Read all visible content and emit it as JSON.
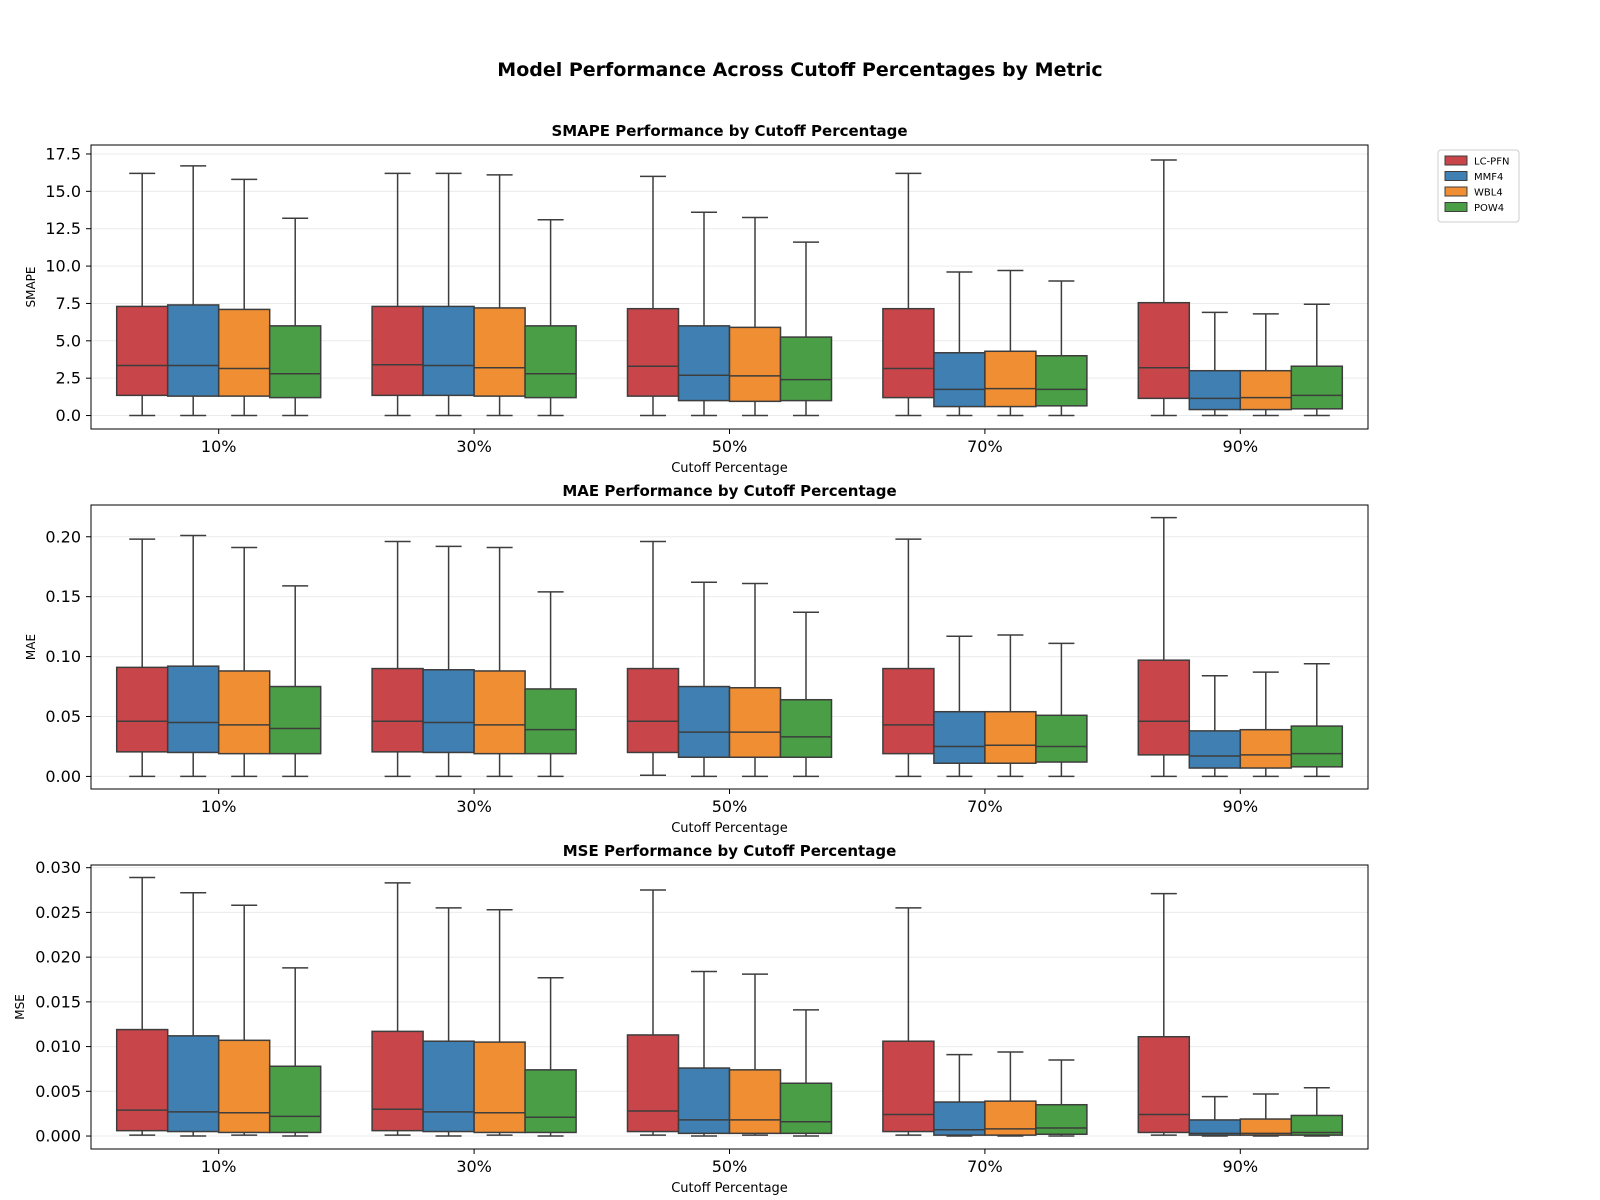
{
  "figure": {
    "title": "Model Performance Across Cutoff Percentages by Metric"
  },
  "legend": {
    "placement": "upper-right outside",
    "items": [
      {
        "name": "LC-PFN",
        "color": "#c8464a"
      },
      {
        "name": "MMF4",
        "color": "#3f7fb2"
      },
      {
        "name": "WBL4",
        "color": "#ef8e33"
      },
      {
        "name": "POW4",
        "color": "#4a9e45"
      }
    ]
  },
  "chart_data": [
    {
      "type": "box",
      "title": "SMAPE Performance by Cutoff Percentage",
      "xlabel": "Cutoff Percentage",
      "ylabel": "SMAPE",
      "ylim": [
        -0.9,
        18.1
      ],
      "yticks": [
        0.0,
        2.5,
        5.0,
        7.5,
        10.0,
        12.5,
        15.0,
        17.5
      ],
      "tick_decimals": 1,
      "grid": "y",
      "categories": [
        "10%",
        "30%",
        "50%",
        "70%",
        "90%"
      ],
      "series": [
        {
          "name": "LC-PFN",
          "boxes": [
            {
              "min": 0.0,
              "q1": 1.35,
              "median": 3.35,
              "q3": 7.3,
              "max": 16.2
            },
            {
              "min": 0.0,
              "q1": 1.35,
              "median": 3.4,
              "q3": 7.3,
              "max": 16.2
            },
            {
              "min": 0.0,
              "q1": 1.3,
              "median": 3.3,
              "q3": 7.15,
              "max": 16.0
            },
            {
              "min": 0.0,
              "q1": 1.2,
              "median": 3.15,
              "q3": 7.15,
              "max": 16.2
            },
            {
              "min": 0.0,
              "q1": 1.15,
              "median": 3.2,
              "q3": 7.55,
              "max": 17.1
            }
          ]
        },
        {
          "name": "MMF4",
          "boxes": [
            {
              "min": 0.0,
              "q1": 1.3,
              "median": 3.35,
              "q3": 7.4,
              "max": 16.7
            },
            {
              "min": 0.0,
              "q1": 1.35,
              "median": 3.35,
              "q3": 7.3,
              "max": 16.2
            },
            {
              "min": 0.0,
              "q1": 1.0,
              "median": 2.7,
              "q3": 6.0,
              "max": 13.6
            },
            {
              "min": 0.0,
              "q1": 0.6,
              "median": 1.75,
              "q3": 4.2,
              "max": 9.6
            },
            {
              "min": 0.0,
              "q1": 0.4,
              "median": 1.15,
              "q3": 3.0,
              "max": 6.9
            }
          ]
        },
        {
          "name": "WBL4",
          "boxes": [
            {
              "min": 0.0,
              "q1": 1.3,
              "median": 3.15,
              "q3": 7.1,
              "max": 15.8
            },
            {
              "min": 0.0,
              "q1": 1.3,
              "median": 3.2,
              "q3": 7.2,
              "max": 16.1
            },
            {
              "min": 0.0,
              "q1": 0.95,
              "median": 2.65,
              "q3": 5.9,
              "max": 13.25
            },
            {
              "min": 0.0,
              "q1": 0.6,
              "median": 1.8,
              "q3": 4.3,
              "max": 9.7
            },
            {
              "min": 0.0,
              "q1": 0.4,
              "median": 1.2,
              "q3": 3.0,
              "max": 6.8
            }
          ]
        },
        {
          "name": "POW4",
          "boxes": [
            {
              "min": 0.0,
              "q1": 1.2,
              "median": 2.8,
              "q3": 6.0,
              "max": 13.2
            },
            {
              "min": 0.0,
              "q1": 1.2,
              "median": 2.8,
              "q3": 6.0,
              "max": 13.1
            },
            {
              "min": 0.0,
              "q1": 1.0,
              "median": 2.4,
              "q3": 5.25,
              "max": 11.6
            },
            {
              "min": 0.0,
              "q1": 0.65,
              "median": 1.75,
              "q3": 4.0,
              "max": 9.0
            },
            {
              "min": 0.0,
              "q1": 0.45,
              "median": 1.35,
              "q3": 3.3,
              "max": 7.45
            }
          ]
        }
      ]
    },
    {
      "type": "box",
      "title": "MAE Performance by Cutoff Percentage",
      "xlabel": "Cutoff Percentage",
      "ylabel": "MAE",
      "ylim": [
        -0.0105,
        0.2265
      ],
      "yticks": [
        0.0,
        0.05,
        0.1,
        0.15,
        0.2
      ],
      "tick_decimals": 2,
      "grid": "y",
      "categories": [
        "10%",
        "30%",
        "50%",
        "70%",
        "90%"
      ],
      "series": [
        {
          "name": "LC-PFN",
          "boxes": [
            {
              "min": 0.0,
              "q1": 0.0205,
              "median": 0.046,
              "q3": 0.091,
              "max": 0.198
            },
            {
              "min": 0.0,
              "q1": 0.0205,
              "median": 0.046,
              "q3": 0.09,
              "max": 0.196
            },
            {
              "min": 0.001,
              "q1": 0.02,
              "median": 0.046,
              "q3": 0.09,
              "max": 0.196
            },
            {
              "min": 0.0,
              "q1": 0.019,
              "median": 0.043,
              "q3": 0.09,
              "max": 0.198
            },
            {
              "min": 0.0,
              "q1": 0.018,
              "median": 0.046,
              "q3": 0.097,
              "max": 0.216
            }
          ]
        },
        {
          "name": "MMF4",
          "boxes": [
            {
              "min": 0.0,
              "q1": 0.02,
              "median": 0.045,
              "q3": 0.092,
              "max": 0.201
            },
            {
              "min": 0.0,
              "q1": 0.02,
              "median": 0.045,
              "q3": 0.089,
              "max": 0.192
            },
            {
              "min": 0.0,
              "q1": 0.016,
              "median": 0.037,
              "q3": 0.075,
              "max": 0.162
            },
            {
              "min": 0.0,
              "q1": 0.011,
              "median": 0.025,
              "q3": 0.054,
              "max": 0.117
            },
            {
              "min": 0.0,
              "q1": 0.007,
              "median": 0.017,
              "q3": 0.038,
              "max": 0.084
            }
          ]
        },
        {
          "name": "WBL4",
          "boxes": [
            {
              "min": 0.0,
              "q1": 0.019,
              "median": 0.043,
              "q3": 0.088,
              "max": 0.191
            },
            {
              "min": 0.0,
              "q1": 0.019,
              "median": 0.043,
              "q3": 0.088,
              "max": 0.191
            },
            {
              "min": 0.0,
              "q1": 0.016,
              "median": 0.037,
              "q3": 0.074,
              "max": 0.161
            },
            {
              "min": 0.0,
              "q1": 0.011,
              "median": 0.026,
              "q3": 0.054,
              "max": 0.118
            },
            {
              "min": 0.0,
              "q1": 0.007,
              "median": 0.018,
              "q3": 0.039,
              "max": 0.087
            }
          ]
        },
        {
          "name": "POW4",
          "boxes": [
            {
              "min": 0.0,
              "q1": 0.019,
              "median": 0.04,
              "q3": 0.075,
              "max": 0.159
            },
            {
              "min": 0.0,
              "q1": 0.019,
              "median": 0.039,
              "q3": 0.073,
              "max": 0.154
            },
            {
              "min": 0.0,
              "q1": 0.016,
              "median": 0.033,
              "q3": 0.064,
              "max": 0.137
            },
            {
              "min": 0.0,
              "q1": 0.012,
              "median": 0.025,
              "q3": 0.051,
              "max": 0.111
            },
            {
              "min": 0.0,
              "q1": 0.008,
              "median": 0.019,
              "q3": 0.042,
              "max": 0.094
            }
          ]
        }
      ]
    },
    {
      "type": "box",
      "title": "MSE Performance by Cutoff Percentage",
      "xlabel": "Cutoff Percentage",
      "ylabel": "MSE",
      "ylim": [
        -0.00145,
        0.0303
      ],
      "yticks": [
        0.0,
        0.005,
        0.01,
        0.015,
        0.02,
        0.025,
        0.03
      ],
      "tick_decimals": 3,
      "grid": "y",
      "categories": [
        "10%",
        "30%",
        "50%",
        "70%",
        "90%"
      ],
      "series": [
        {
          "name": "LC-PFN",
          "boxes": [
            {
              "min": 0.0001,
              "q1": 0.0006,
              "median": 0.0029,
              "q3": 0.0119,
              "max": 0.0289
            },
            {
              "min": 0.0001,
              "q1": 0.0006,
              "median": 0.003,
              "q3": 0.0117,
              "max": 0.0283
            },
            {
              "min": 0.0001,
              "q1": 0.0005,
              "median": 0.0028,
              "q3": 0.0113,
              "max": 0.0275
            },
            {
              "min": 0.0001,
              "q1": 0.0005,
              "median": 0.0024,
              "q3": 0.0106,
              "max": 0.0255
            },
            {
              "min": 0.0001,
              "q1": 0.0004,
              "median": 0.0024,
              "q3": 0.0111,
              "max": 0.0271
            }
          ]
        },
        {
          "name": "MMF4",
          "boxes": [
            {
              "min": 0.0,
              "q1": 0.0005,
              "median": 0.0027,
              "q3": 0.0112,
              "max": 0.0272
            },
            {
              "min": 0.0,
              "q1": 0.0005,
              "median": 0.0027,
              "q3": 0.0106,
              "max": 0.0255
            },
            {
              "min": 0.0,
              "q1": 0.0003,
              "median": 0.0018,
              "q3": 0.0076,
              "max": 0.0184
            },
            {
              "min": 0.0,
              "q1": 0.0001,
              "median": 0.0007,
              "q3": 0.0038,
              "max": 0.0091
            },
            {
              "min": 0.0,
              "q1": 0.0001,
              "median": 0.0003,
              "q3": 0.0018,
              "max": 0.0044
            }
          ]
        },
        {
          "name": "WBL4",
          "boxes": [
            {
              "min": 0.0001,
              "q1": 0.0004,
              "median": 0.0026,
              "q3": 0.0107,
              "max": 0.0258
            },
            {
              "min": 0.0001,
              "q1": 0.0004,
              "median": 0.0026,
              "q3": 0.0105,
              "max": 0.0253
            },
            {
              "min": 0.0001,
              "q1": 0.0003,
              "median": 0.0018,
              "q3": 0.0074,
              "max": 0.0181
            },
            {
              "min": 0.0,
              "q1": 0.0001,
              "median": 0.0008,
              "q3": 0.0039,
              "max": 0.0094
            },
            {
              "min": 0.0,
              "q1": 0.0001,
              "median": 0.0003,
              "q3": 0.0019,
              "max": 0.0047
            }
          ]
        },
        {
          "name": "POW4",
          "boxes": [
            {
              "min": 0.0,
              "q1": 0.0004,
              "median": 0.0022,
              "q3": 0.0078,
              "max": 0.0188
            },
            {
              "min": 0.0,
              "q1": 0.0004,
              "median": 0.0021,
              "q3": 0.0074,
              "max": 0.0177
            },
            {
              "min": 0.0,
              "q1": 0.0003,
              "median": 0.0016,
              "q3": 0.0059,
              "max": 0.0141
            },
            {
              "min": 0.0,
              "q1": 0.0002,
              "median": 0.0009,
              "q3": 0.0035,
              "max": 0.0085
            },
            {
              "min": 0.0,
              "q1": 0.0001,
              "median": 0.0004,
              "q3": 0.0023,
              "max": 0.0054
            }
          ]
        }
      ]
    }
  ]
}
